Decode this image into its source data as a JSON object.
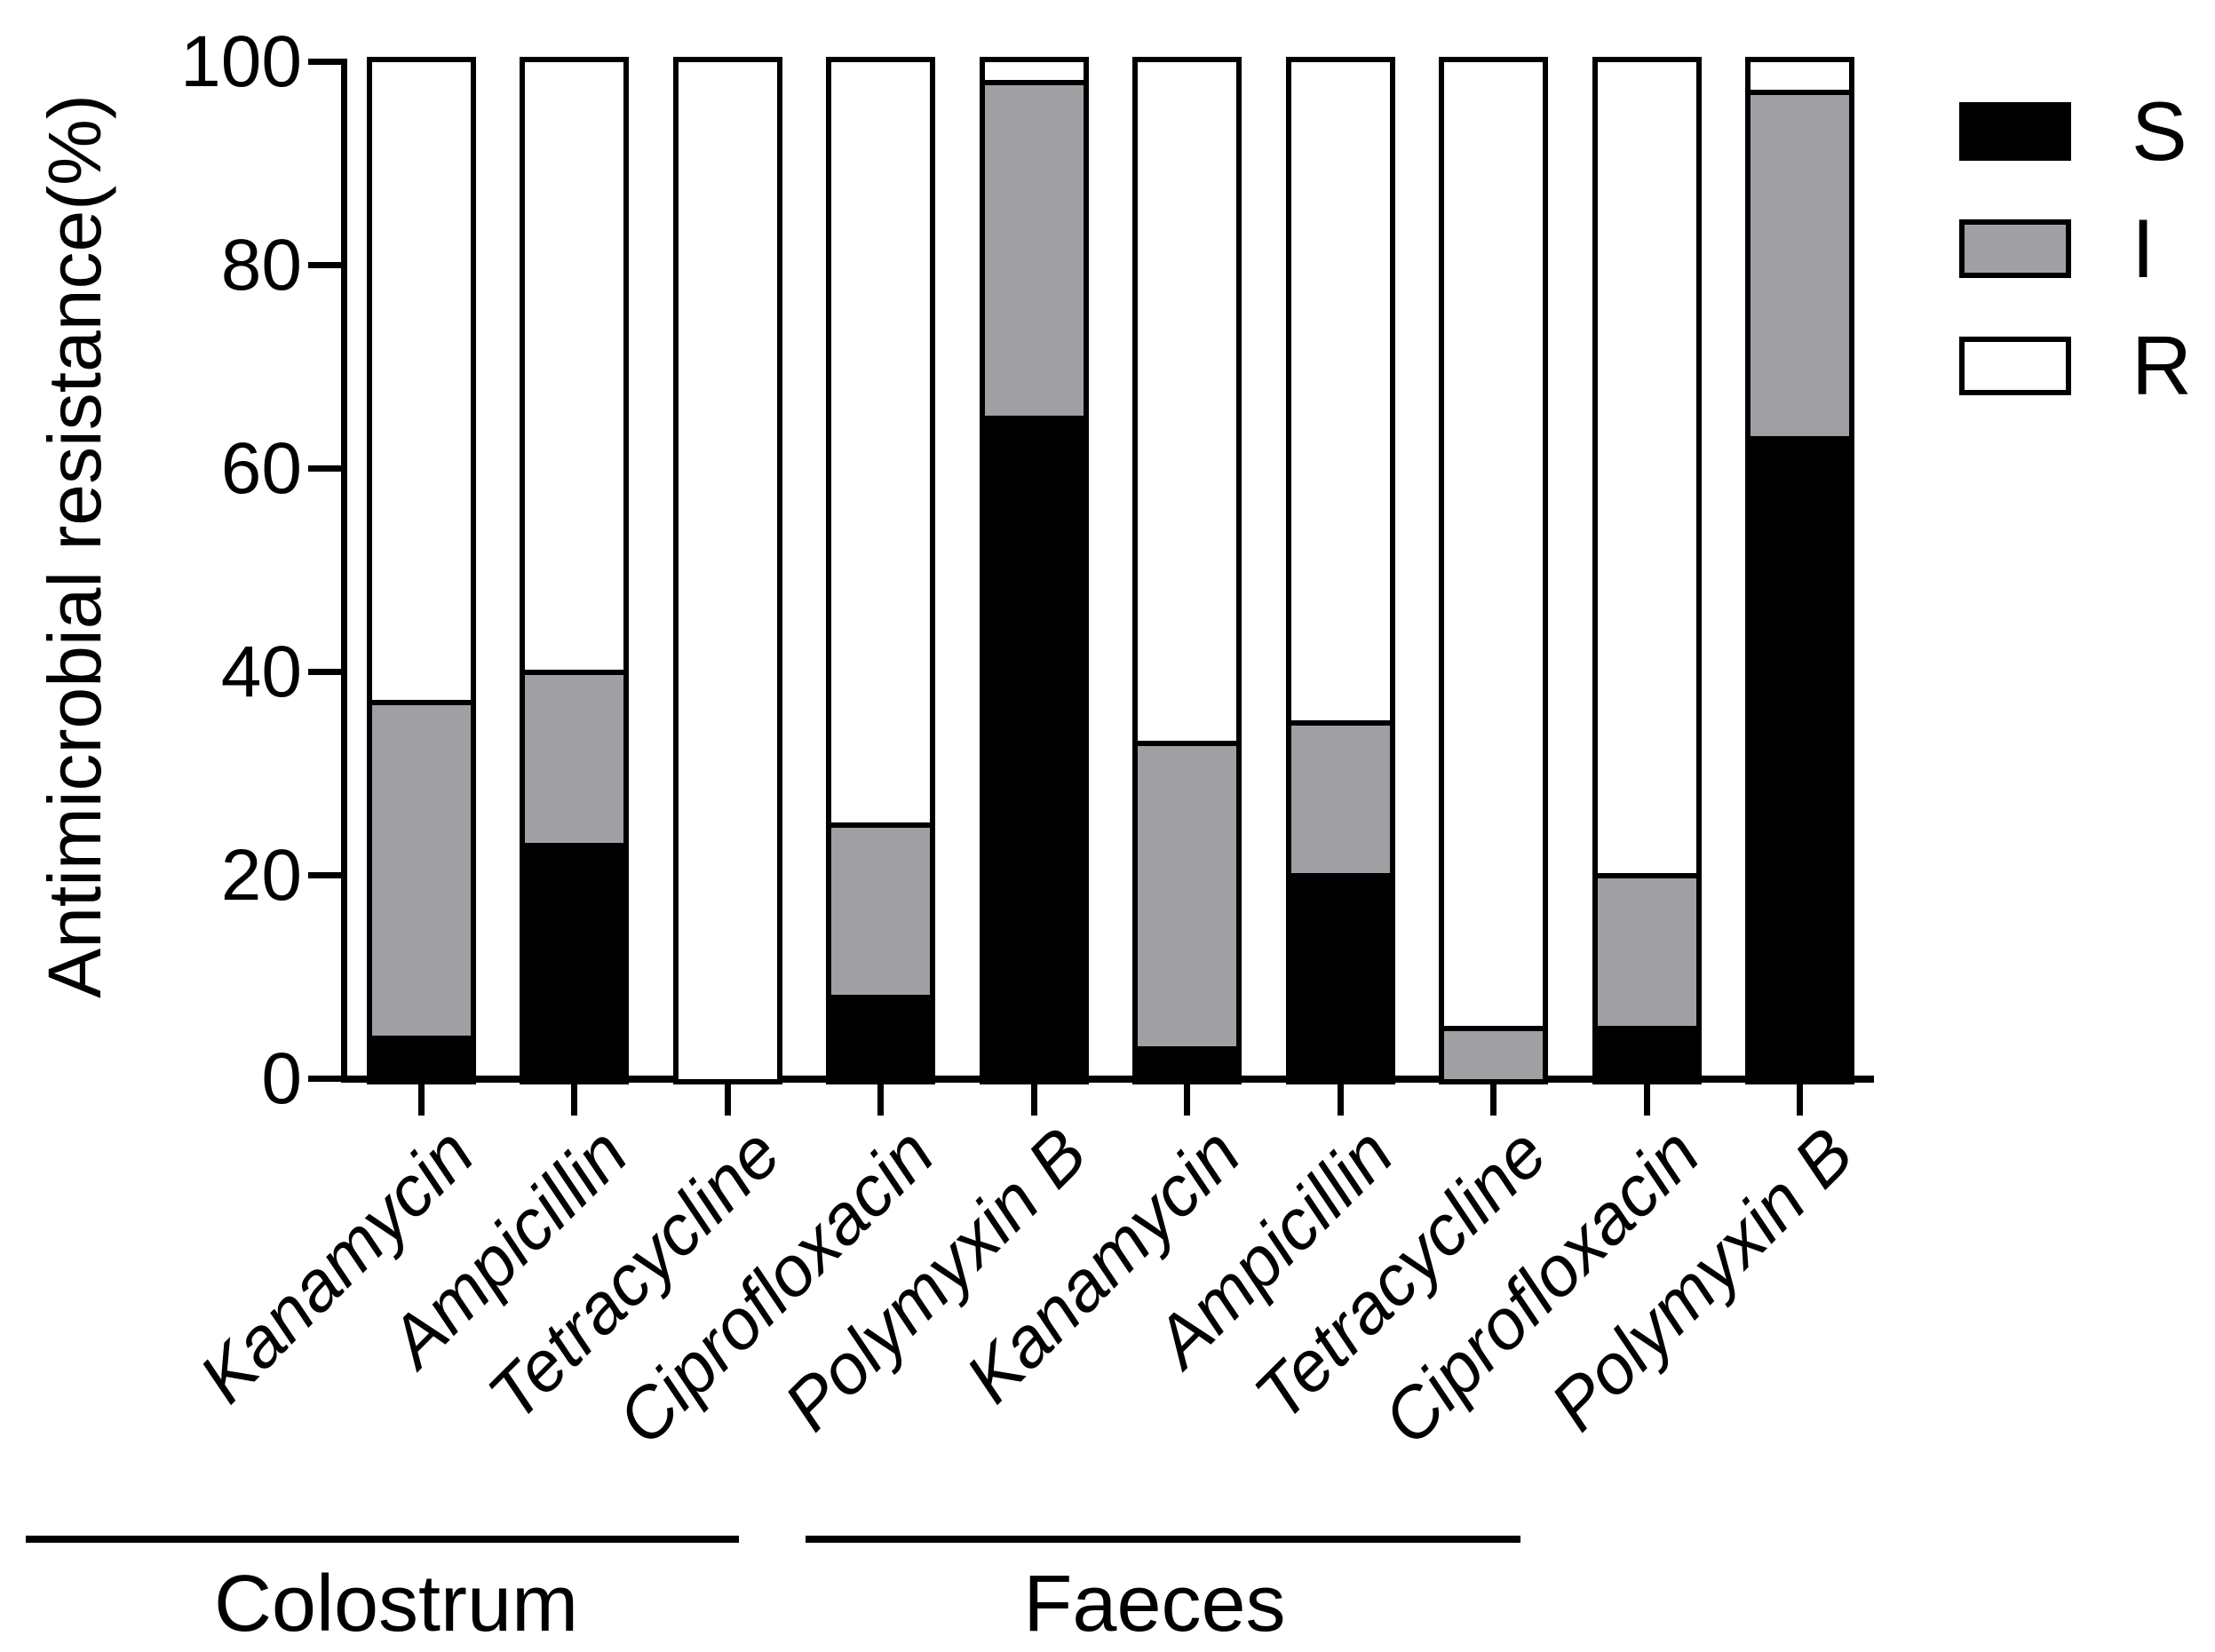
{
  "chart_data": {
    "type": "bar",
    "stacked": true,
    "title": "",
    "ylabel": "Antimicrobial resistance(%)",
    "xlabel": "",
    "ylim": [
      0,
      100
    ],
    "yticks": [
      0,
      20,
      40,
      60,
      80,
      100
    ],
    "grid": false,
    "legend_position": "top-right",
    "categories": [
      "Kanamycin",
      "Ampicillin",
      "Tetracycline",
      "Ciprofloxacin",
      "Polymyxin B",
      "Kanamycin",
      "Ampicillin",
      "Tetracycline",
      "Ciprofloxacin",
      "Polymyxin B"
    ],
    "groups": [
      {
        "label": "Colostrum",
        "category_span": [
          0,
          4
        ]
      },
      {
        "label": "Faeces",
        "category_span": [
          5,
          9
        ]
      }
    ],
    "series": [
      {
        "name": "S",
        "color": "#000000",
        "values": [
          4,
          23,
          0,
          8,
          65,
          3,
          20,
          0,
          5,
          63
        ]
      },
      {
        "name": "I",
        "color": "#a0a0a4",
        "values": [
          33,
          17,
          0,
          17,
          33,
          30,
          15,
          5,
          15,
          34
        ]
      },
      {
        "name": "R",
        "color": "#ffffff",
        "values": [
          63,
          60,
          100,
          75,
          2,
          67,
          65,
          95,
          80,
          3
        ]
      }
    ]
  }
}
